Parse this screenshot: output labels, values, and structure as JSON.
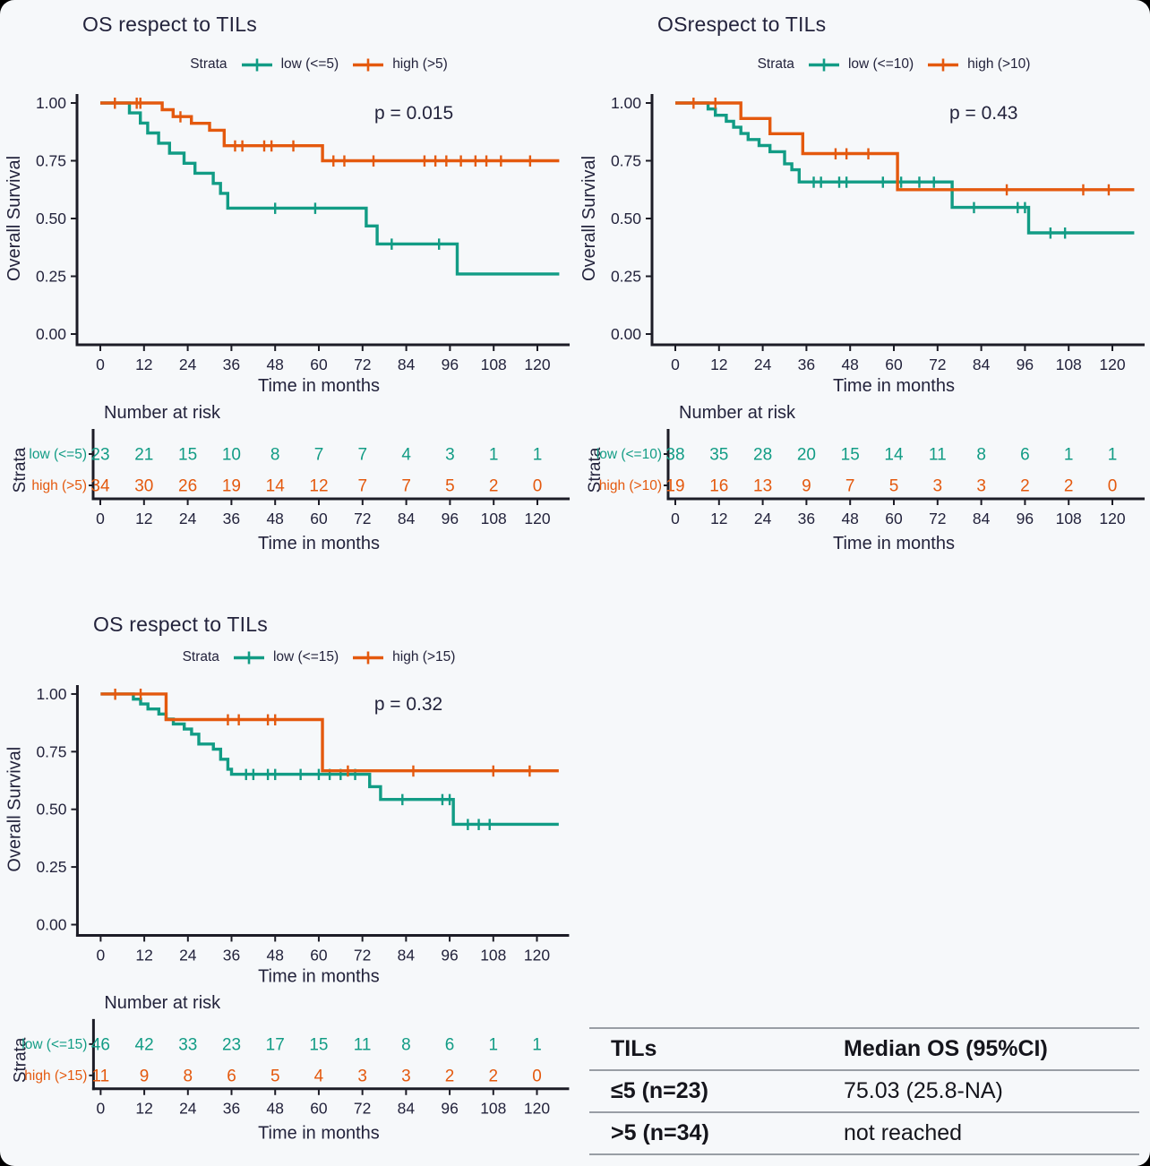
{
  "style": {
    "page_background": "#000000",
    "figure_background": "#f6f8fa",
    "ink": "#23233c",
    "axis_color": "#1c1c26",
    "low_color": "#129c85",
    "high_color": "#e4590e",
    "table_rule_color": "#999ea5",
    "table_text_color": "#15151c"
  },
  "chart_data": [
    {
      "type": "line",
      "subtype": "kaplan-meier",
      "title": "OS respect to TILs",
      "p_value_label": "p = 0.015",
      "legend_title": "Strata",
      "xlabel": "Time in months",
      "ylabel": "Overall Survival",
      "xlim": [
        0,
        126
      ],
      "ylim": [
        0,
        1
      ],
      "xticks": [
        0,
        12,
        24,
        36,
        48,
        60,
        72,
        84,
        96,
        108,
        120
      ],
      "yticks": [
        0,
        0.25,
        0.5,
        0.75,
        1
      ],
      "ytick_labels": [
        "0.00",
        "0.25",
        "0.50",
        "0.75",
        "1.00"
      ],
      "series": [
        {
          "key": "low",
          "name": "low (<=5)",
          "color": "#129c85",
          "steps": [
            [
              0,
              1
            ],
            [
              8,
              0.957
            ],
            [
              11,
              0.913
            ],
            [
              13,
              0.87
            ],
            [
              16,
              0.826
            ],
            [
              19,
              0.783
            ],
            [
              23,
              0.739
            ],
            [
              26,
              0.696
            ],
            [
              31,
              0.652
            ],
            [
              33,
              0.609
            ],
            [
              35,
              0.545
            ],
            [
              73,
              0.468
            ],
            [
              76,
              0.39
            ],
            [
              98,
              0.26
            ],
            [
              126,
              0.26
            ]
          ],
          "censor_marks": [
            [
              48,
              0.545
            ],
            [
              59,
              0.545
            ],
            [
              80,
              0.39
            ],
            [
              93,
              0.39
            ]
          ]
        },
        {
          "key": "high",
          "name": "high (>5)",
          "color": "#e4590e",
          "steps": [
            [
              0,
              1
            ],
            [
              17,
              0.971
            ],
            [
              20,
              0.941
            ],
            [
              25,
              0.912
            ],
            [
              30,
              0.882
            ],
            [
              34,
              0.815
            ],
            [
              61,
              0.75
            ],
            [
              126,
              0.75
            ]
          ],
          "censor_marks": [
            [
              4,
              1
            ],
            [
              10,
              1
            ],
            [
              11,
              1
            ],
            [
              22,
              0.941
            ],
            [
              37,
              0.815
            ],
            [
              39,
              0.815
            ],
            [
              45,
              0.815
            ],
            [
              47,
              0.815
            ],
            [
              53,
              0.815
            ],
            [
              64,
              0.75
            ],
            [
              67,
              0.75
            ],
            [
              75,
              0.75
            ],
            [
              89,
              0.75
            ],
            [
              92,
              0.75
            ],
            [
              95,
              0.75
            ],
            [
              99,
              0.75
            ],
            [
              103,
              0.75
            ],
            [
              106,
              0.75
            ],
            [
              110,
              0.75
            ],
            [
              118,
              0.75
            ]
          ]
        }
      ],
      "number_at_risk": {
        "title": "Number at risk",
        "ylabel": "Strata",
        "xlabel": "Time in months",
        "times": [
          0,
          12,
          24,
          36,
          48,
          60,
          72,
          84,
          96,
          108,
          120
        ],
        "rows": [
          {
            "label": "low (<=5)",
            "color": "#129c85",
            "counts": [
              23,
              21,
              15,
              10,
              8,
              7,
              7,
              4,
              3,
              1,
              1
            ]
          },
          {
            "label": "high (>5)",
            "color": "#e4590e",
            "counts": [
              34,
              30,
              26,
              19,
              14,
              12,
              7,
              7,
              5,
              2,
              0
            ]
          }
        ]
      }
    },
    {
      "type": "line",
      "subtype": "kaplan-meier",
      "title": "OSrespect to TILs",
      "p_value_label": "p = 0.43",
      "legend_title": "Strata",
      "xlabel": "Time in months",
      "ylabel": "Overall Survival",
      "xlim": [
        0,
        126
      ],
      "ylim": [
        0,
        1
      ],
      "xticks": [
        0,
        12,
        24,
        36,
        48,
        60,
        72,
        84,
        96,
        108,
        120
      ],
      "yticks": [
        0,
        0.25,
        0.5,
        0.75,
        1
      ],
      "ytick_labels": [
        "0.00",
        "0.25",
        "0.50",
        "0.75",
        "1.00"
      ],
      "series": [
        {
          "key": "low",
          "name": "low (<=10)",
          "color": "#129c85",
          "steps": [
            [
              0,
              1
            ],
            [
              9,
              0.974
            ],
            [
              11,
              0.947
            ],
            [
              14,
              0.921
            ],
            [
              16,
              0.895
            ],
            [
              18,
              0.868
            ],
            [
              20,
              0.842
            ],
            [
              23,
              0.816
            ],
            [
              26,
              0.789
            ],
            [
              30,
              0.737
            ],
            [
              32,
              0.711
            ],
            [
              34,
              0.658
            ],
            [
              76,
              0.548
            ],
            [
              97,
              0.438
            ],
            [
              126,
              0.438
            ]
          ],
          "censor_marks": [
            [
              38,
              0.658
            ],
            [
              40,
              0.658
            ],
            [
              45,
              0.658
            ],
            [
              47,
              0.658
            ],
            [
              57,
              0.658
            ],
            [
              62,
              0.658
            ],
            [
              67,
              0.658
            ],
            [
              71,
              0.658
            ],
            [
              82,
              0.548
            ],
            [
              94,
              0.548
            ],
            [
              96,
              0.548
            ],
            [
              103,
              0.438
            ],
            [
              107,
              0.438
            ]
          ]
        },
        {
          "key": "high",
          "name": "high (>10)",
          "color": "#e4590e",
          "steps": [
            [
              0,
              1
            ],
            [
              18,
              0.933
            ],
            [
              26,
              0.867
            ],
            [
              35,
              0.781
            ],
            [
              61,
              0.625
            ],
            [
              126,
              0.625
            ]
          ],
          "censor_marks": [
            [
              5,
              1
            ],
            [
              11,
              1
            ],
            [
              44,
              0.781
            ],
            [
              47,
              0.781
            ],
            [
              53,
              0.781
            ],
            [
              91,
              0.625
            ],
            [
              112,
              0.625
            ],
            [
              119,
              0.625
            ]
          ]
        }
      ],
      "number_at_risk": {
        "title": "Number at risk",
        "ylabel": "Strata",
        "xlabel": "Time in months",
        "times": [
          0,
          12,
          24,
          36,
          48,
          60,
          72,
          84,
          96,
          108,
          120
        ],
        "rows": [
          {
            "label": "low (<=10)",
            "color": "#129c85",
            "counts": [
              38,
              35,
              28,
              20,
              15,
              14,
              11,
              8,
              6,
              1,
              1
            ]
          },
          {
            "label": "high (>10)",
            "color": "#e4590e",
            "counts": [
              19,
              16,
              13,
              9,
              7,
              5,
              3,
              3,
              2,
              2,
              0
            ]
          }
        ]
      }
    },
    {
      "type": "line",
      "subtype": "kaplan-meier",
      "title": "OS respect to TILs",
      "p_value_label": "p = 0.32",
      "legend_title": "Strata",
      "xlabel": "Time in months",
      "ylabel": "Overall Survival",
      "xlim": [
        0,
        126
      ],
      "ylim": [
        0,
        1
      ],
      "xticks": [
        0,
        12,
        24,
        36,
        48,
        60,
        72,
        84,
        96,
        108,
        120
      ],
      "yticks": [
        0,
        0.25,
        0.5,
        0.75,
        1
      ],
      "ytick_labels": [
        "0.00",
        "0.25",
        "0.50",
        "0.75",
        "1.00"
      ],
      "series": [
        {
          "key": "low",
          "name": "low (<=15)",
          "color": "#129c85",
          "steps": [
            [
              0,
              1
            ],
            [
              9,
              0.978
            ],
            [
              11,
              0.957
            ],
            [
              13,
              0.935
            ],
            [
              16,
              0.913
            ],
            [
              18,
              0.891
            ],
            [
              20,
              0.87
            ],
            [
              23,
              0.848
            ],
            [
              25,
              0.826
            ],
            [
              27,
              0.783
            ],
            [
              31,
              0.761
            ],
            [
              33,
              0.717
            ],
            [
              35,
              0.674
            ],
            [
              36,
              0.652
            ],
            [
              74,
              0.598
            ],
            [
              77,
              0.543
            ],
            [
              97,
              0.435
            ],
            [
              126,
              0.435
            ]
          ],
          "censor_marks": [
            [
              40,
              0.652
            ],
            [
              42,
              0.652
            ],
            [
              46,
              0.652
            ],
            [
              48,
              0.652
            ],
            [
              55,
              0.652
            ],
            [
              60,
              0.652
            ],
            [
              63,
              0.652
            ],
            [
              66,
              0.652
            ],
            [
              70,
              0.652
            ],
            [
              83,
              0.543
            ],
            [
              94,
              0.543
            ],
            [
              96,
              0.543
            ],
            [
              101,
              0.435
            ],
            [
              104,
              0.435
            ],
            [
              107,
              0.435
            ]
          ]
        },
        {
          "key": "high",
          "name": "high (>15)",
          "color": "#e4590e",
          "steps": [
            [
              0,
              1
            ],
            [
              18,
              0.889
            ],
            [
              61,
              0.667
            ],
            [
              126,
              0.667
            ]
          ],
          "censor_marks": [
            [
              4,
              1
            ],
            [
              11,
              1
            ],
            [
              35,
              0.889
            ],
            [
              38,
              0.889
            ],
            [
              46,
              0.889
            ],
            [
              48,
              0.889
            ],
            [
              68,
              0.667
            ],
            [
              86,
              0.667
            ],
            [
              108,
              0.667
            ],
            [
              118,
              0.667
            ]
          ]
        }
      ],
      "number_at_risk": {
        "title": "Number at risk",
        "ylabel": "Strata",
        "xlabel": "Time in months",
        "times": [
          0,
          12,
          24,
          36,
          48,
          60,
          72,
          84,
          96,
          108,
          120
        ],
        "rows": [
          {
            "label": "low (<=15)",
            "color": "#129c85",
            "counts": [
              46,
              42,
              33,
              23,
              17,
              15,
              11,
              8,
              6,
              1,
              1
            ]
          },
          {
            "label": "high (>15)",
            "color": "#e4590e",
            "counts": [
              11,
              9,
              8,
              6,
              5,
              4,
              3,
              3,
              2,
              2,
              0
            ]
          }
        ]
      }
    },
    {
      "type": "table",
      "headers": [
        "TILs",
        "Median OS (95%CI)"
      ],
      "rows": [
        [
          "≤5 (n=23)",
          "75.03 (25.8-NA)"
        ],
        [
          ">5 (n=34)",
          "not reached"
        ]
      ]
    }
  ]
}
